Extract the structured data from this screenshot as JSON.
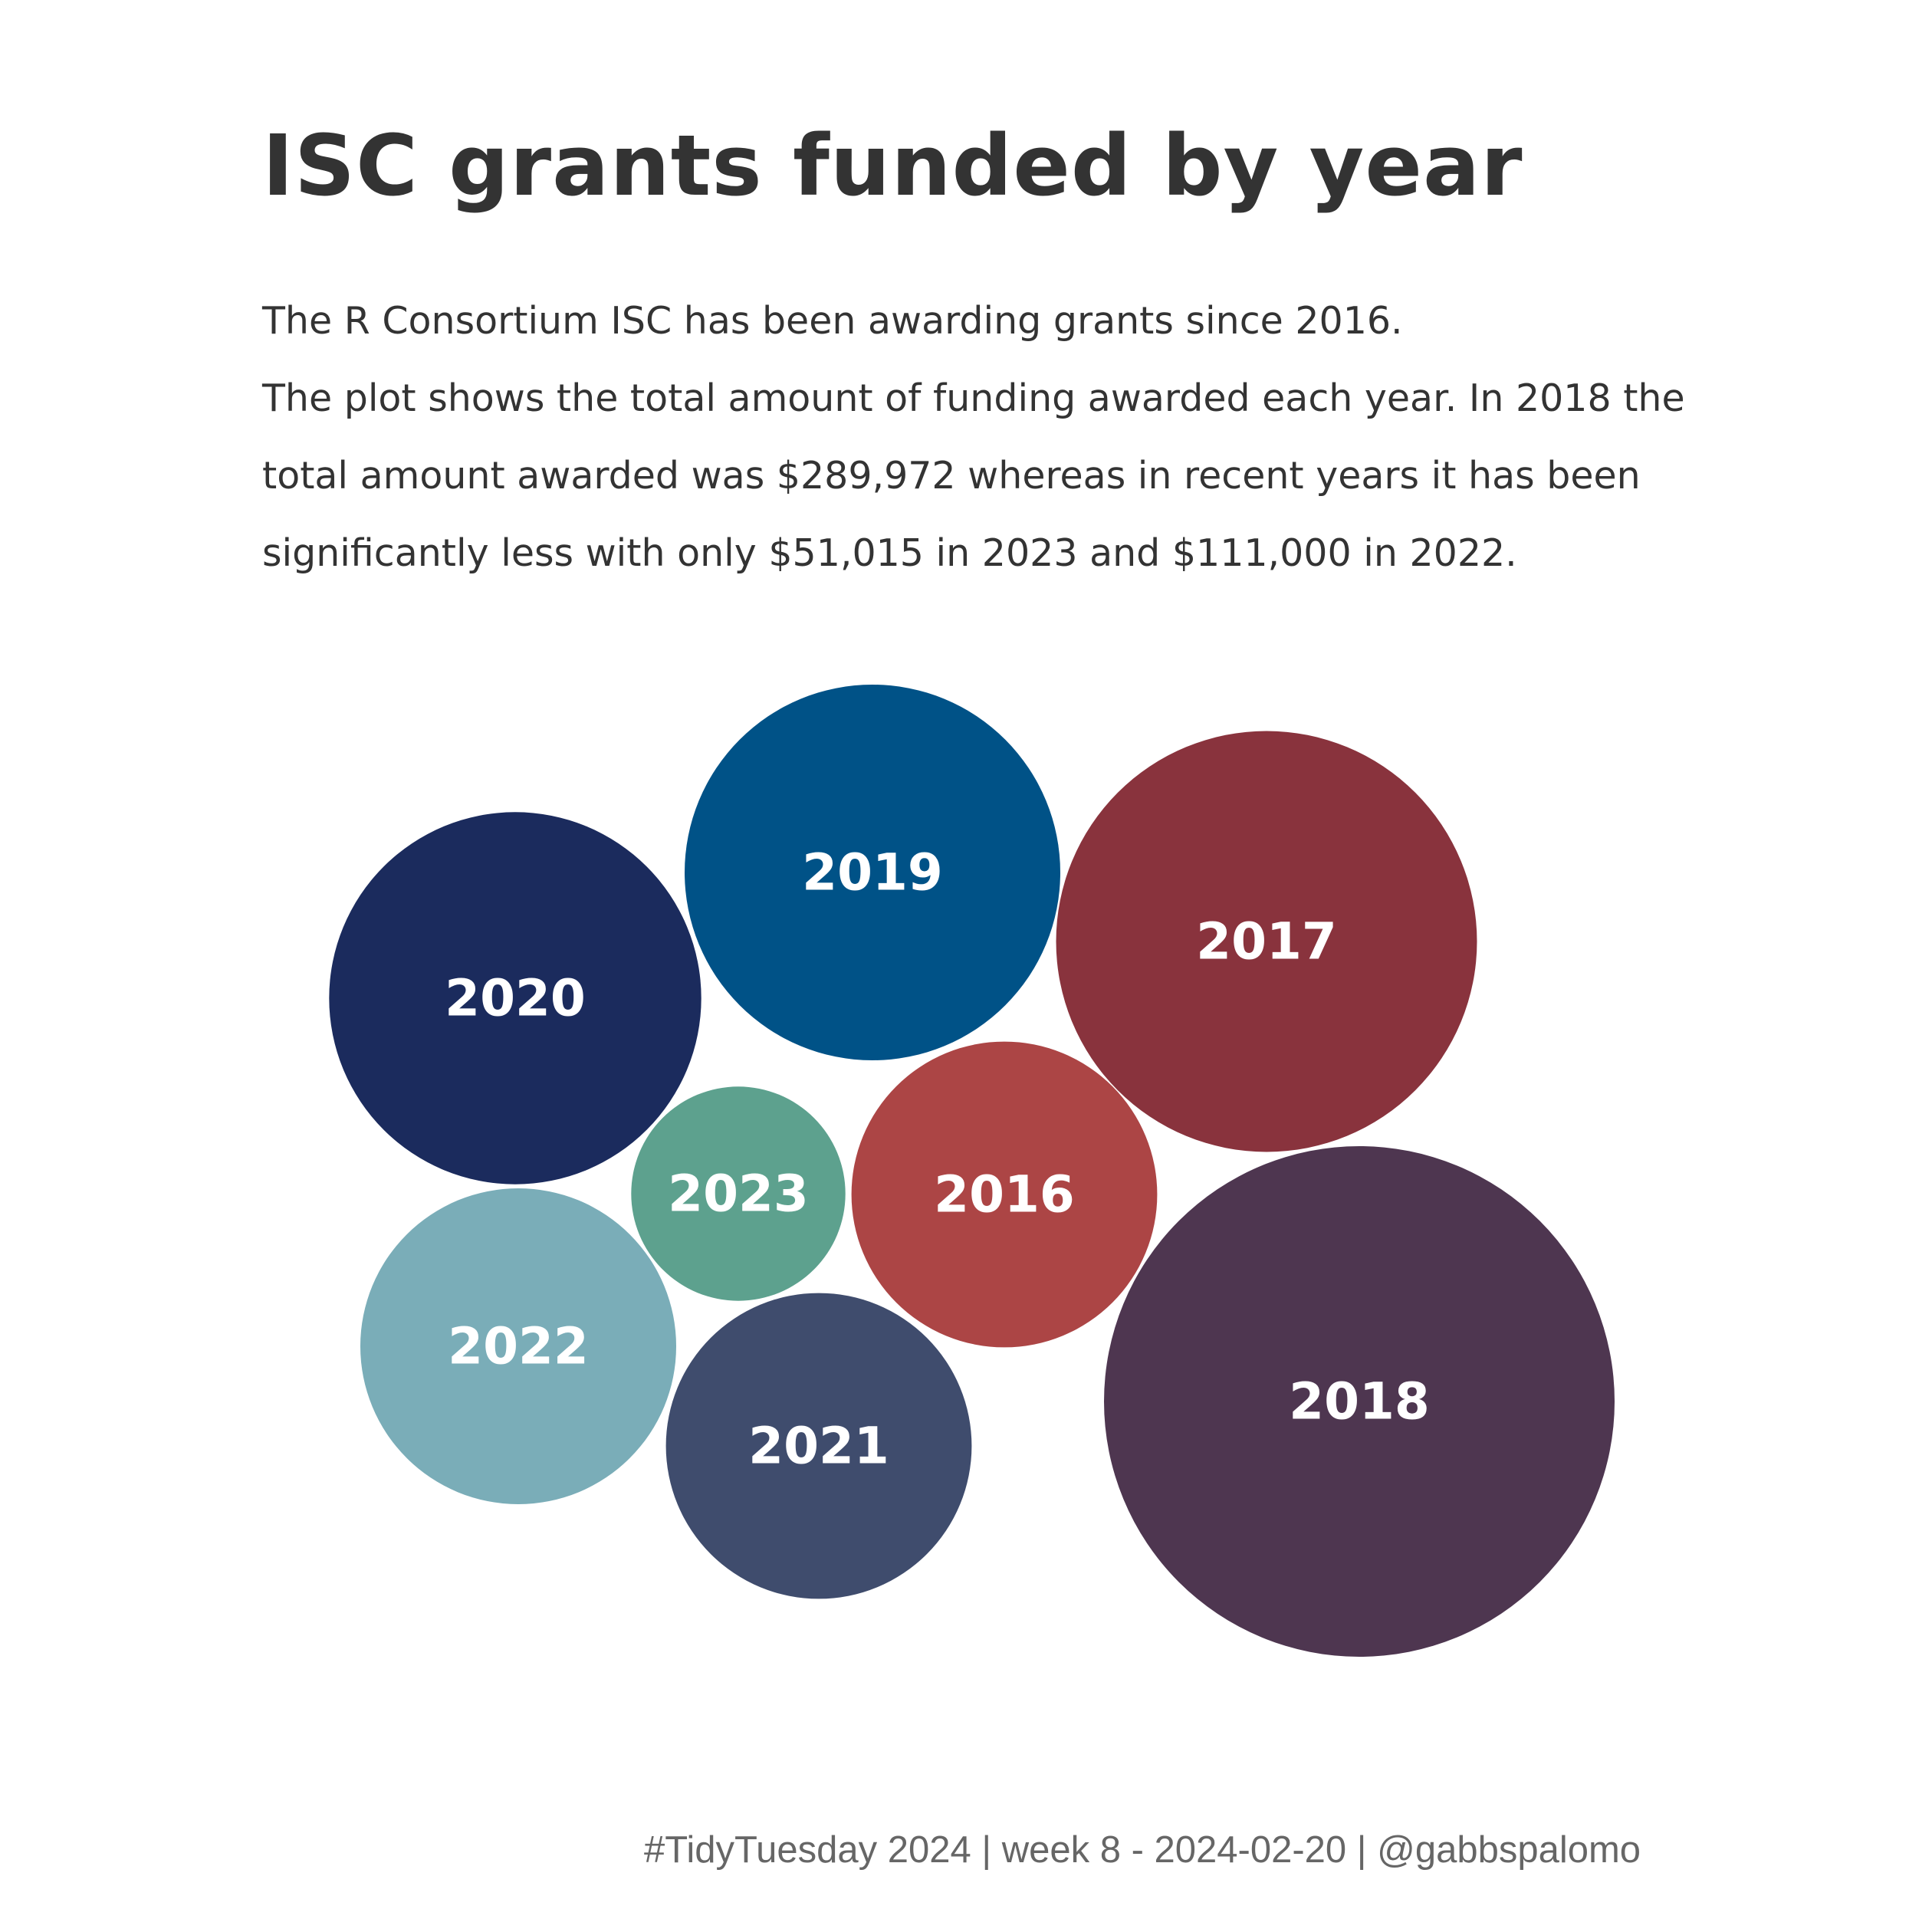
{
  "title": "ISC grants funded by year",
  "subtitle_lines": [
    "The R Consortium ISC has been awarding grants since 2016.",
    "The plot shows the total amount of funding awarded each year. In 2018 the",
    "total amount awarded was $289,972 whereas in recent years it has been",
    "significantly less with only $51,015 in 2023 and $111,000 in 2022."
  ],
  "caption": "#TidyTuesday 2024 | week 8 - 2024-02-20 | @gabbspalomo",
  "chart_data": {
    "type": "packed-bubble",
    "size_encoding": "total funding awarded (area)",
    "bubbles": [
      {
        "label": "2016",
        "value": 104000,
        "color": "#AC4545"
      },
      {
        "label": "2017",
        "value": 197000,
        "color": "#89333D"
      },
      {
        "label": "2018",
        "value": 289972,
        "color": "#4E3650"
      },
      {
        "label": "2019",
        "value": 157000,
        "color": "#005287"
      },
      {
        "label": "2020",
        "value": 154000,
        "color": "#1B2B5D"
      },
      {
        "label": "2021",
        "value": 104000,
        "color": "#3F4C6D"
      },
      {
        "label": "2022",
        "value": 111000,
        "color": "#7AADB8"
      },
      {
        "label": "2023",
        "value": 51015,
        "color": "#5DA18E"
      }
    ]
  }
}
